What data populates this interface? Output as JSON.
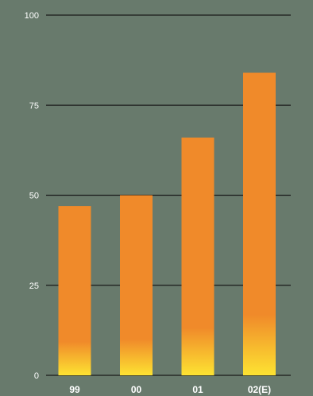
{
  "colors": {
    "background": "#687a6c",
    "grid": "#1a1a1a",
    "bar_top": "#f08a2a",
    "bar_bottom": "#fde332",
    "text": "#ffffff"
  },
  "chart_data": {
    "type": "bar",
    "categories": [
      "99",
      "00",
      "01",
      "02(E)"
    ],
    "values": [
      47,
      50,
      66,
      84
    ],
    "ylim": [
      0,
      100
    ],
    "yticks": [
      "0",
      "25",
      "50",
      "75",
      "100"
    ],
    "grid": true,
    "title": "",
    "xlabel": "",
    "ylabel": ""
  }
}
